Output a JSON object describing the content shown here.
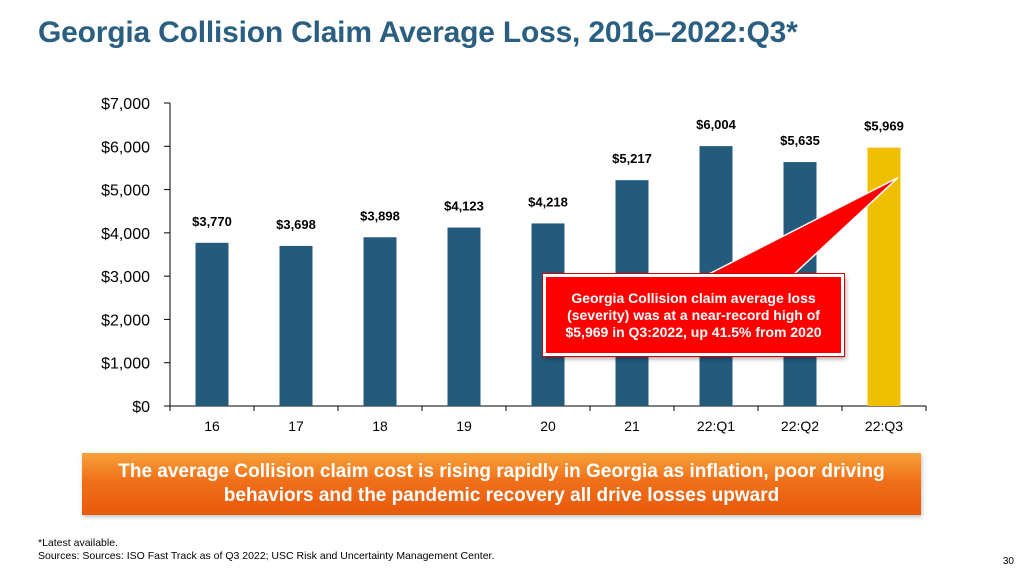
{
  "title": "Georgia Collision Claim Average Loss, 2016–2022:Q3*",
  "chart_data": {
    "type": "bar",
    "categories": [
      "16",
      "17",
      "18",
      "19",
      "20",
      "21",
      "22:Q1",
      "22:Q2",
      "22:Q3"
    ],
    "values": [
      3770,
      3698,
      3898,
      4123,
      4218,
      5217,
      6004,
      5635,
      5969
    ],
    "data_labels": [
      "$3,770",
      "$3,698",
      "$3,898",
      "$4,123",
      "$4,218",
      "$5,217",
      "$6,004",
      "$5,635",
      "$5,969"
    ],
    "ylim": [
      0,
      7000
    ],
    "y_ticks": [
      0,
      1000,
      2000,
      3000,
      4000,
      5000,
      6000,
      7000
    ],
    "y_tick_labels": [
      "$0",
      "$1,000",
      "$2,000",
      "$3,000",
      "$4,000",
      "$5,000",
      "$6,000",
      "$7,000"
    ],
    "xlabel": "",
    "ylabel": "",
    "grid": false,
    "colors": {
      "bar": "#245a7b",
      "highlight": "#f0bf00",
      "highlight_index": 8
    }
  },
  "callout": {
    "text": "Georgia Collision claim average loss (severity) was at a near-record high of $5,969 in Q3:2022, up 41.5% from 2020",
    "color": "#ff0000"
  },
  "banner": {
    "text": "The average Collision claim cost is rising rapidly in Georgia as inflation, poor driving behaviors and the pandemic recovery all drive losses upward"
  },
  "footnotes": {
    "latest": "*Latest available.",
    "sources": "Sources: Sources: ISO Fast Track as of Q3 2022; USC Risk and Uncertainty Management Center."
  },
  "page_number": "30"
}
